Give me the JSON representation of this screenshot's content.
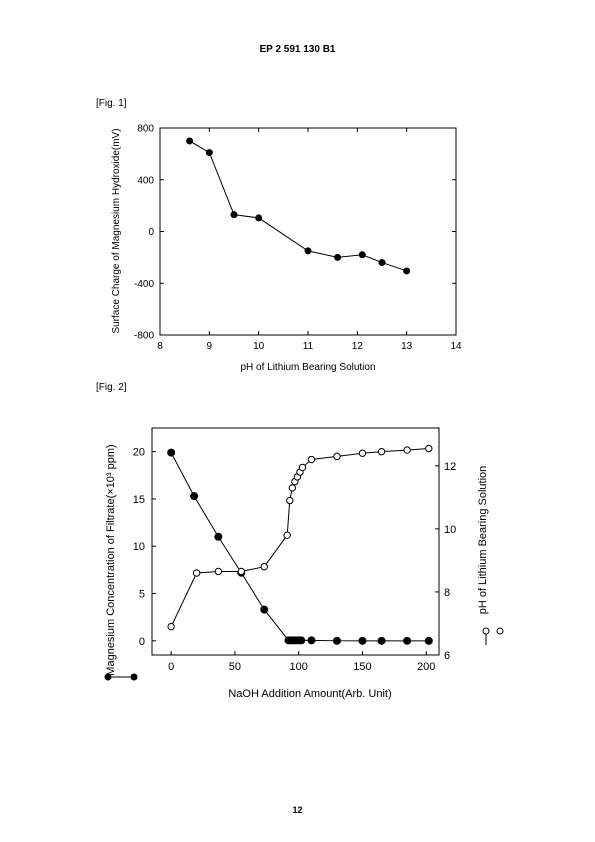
{
  "page": {
    "header": "EP 2 591 130 B1",
    "page_number": "12",
    "fig1_label": "[Fig. 1]",
    "fig2_label": "[Fig. 2]"
  },
  "chart_data": [
    {
      "type": "line",
      "title": "",
      "xlabel": "pH of Lithium Bearing Solution",
      "ylabel": "Surface Charge of Magnesium Hydroxide(mV)",
      "xlim": [
        8,
        14
      ],
      "ylim": [
        -800,
        800
      ],
      "x_ticks": [
        8,
        9,
        10,
        11,
        12,
        13,
        14
      ],
      "y_ticks": [
        -800,
        -400,
        0,
        400,
        800
      ],
      "y_tick_labels": [
        "-800",
        "-400",
        "0",
        "400",
        "800"
      ],
      "grid": false,
      "series": [
        {
          "marker": "filled-circle",
          "x": [
            8.6,
            9.0,
            9.5,
            10.0,
            11.0,
            11.6,
            12.1,
            12.5,
            13.0
          ],
          "y": [
            700,
            610,
            130,
            105,
            -150,
            -200,
            -180,
            -240,
            -305
          ]
        }
      ]
    },
    {
      "type": "line",
      "title": "",
      "xlabel": "NaOH Addition Amount(Arb. Unit)",
      "ylabel": "Magnesium Concentration of Filtrate(×10³ ppm)",
      "y2label": "pH of Lithium Bearing Solution",
      "xlim": [
        -15,
        210
      ],
      "ylim": [
        -1.5,
        22.5
      ],
      "y2lim": [
        6,
        13.2
      ],
      "x_ticks": [
        0,
        50,
        100,
        150,
        200
      ],
      "y_ticks": [
        0,
        5,
        10,
        15,
        20
      ],
      "y2_ticks": [
        6,
        8,
        10,
        12
      ],
      "grid": false,
      "legend_left": "filled-circle",
      "legend_right": "open-circle",
      "series": [
        {
          "axis": "left",
          "marker": "filled-circle",
          "x": [
            0,
            18,
            37,
            55,
            73,
            92,
            94,
            96,
            98,
            100,
            102,
            110,
            130,
            150,
            165,
            185,
            202
          ],
          "y": [
            19.9,
            15.3,
            11.0,
            7.2,
            3.3,
            0.05,
            0.05,
            0.05,
            0.05,
            0.05,
            0.05,
            0.05,
            0.0,
            0.0,
            0.0,
            0.0,
            0.0
          ]
        },
        {
          "axis": "right",
          "marker": "open-circle",
          "x": [
            0,
            20,
            37,
            55,
            73,
            91,
            93,
            95,
            97,
            99,
            101,
            103,
            110,
            130,
            150,
            165,
            185,
            202
          ],
          "y": [
            6.9,
            8.6,
            8.65,
            8.65,
            8.8,
            9.8,
            10.9,
            11.3,
            11.5,
            11.65,
            11.8,
            11.95,
            12.2,
            12.3,
            12.4,
            12.45,
            12.5,
            12.55
          ]
        }
      ]
    }
  ]
}
